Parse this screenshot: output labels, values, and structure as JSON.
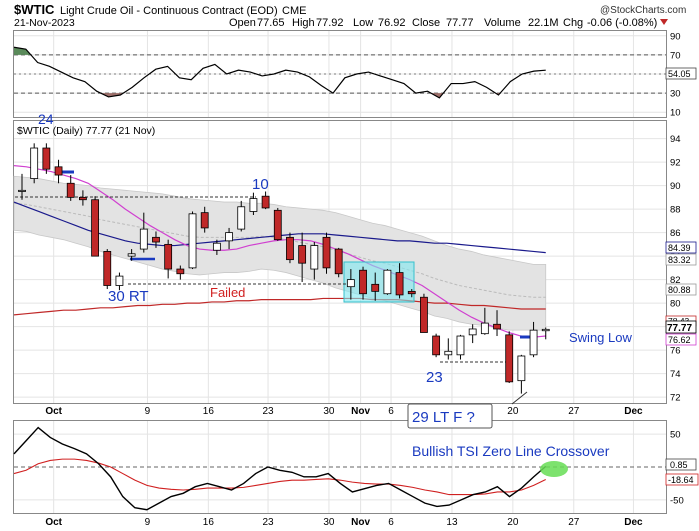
{
  "header": {
    "symbol": "$WTIC",
    "name": "Light Crude Oil - Continuous Contract (EOD)",
    "exchange": "CME",
    "date": "21-Nov-2023",
    "open_label": "Open",
    "open": "77.65",
    "high_label": "High",
    "high": "77.92",
    "low_label": "Low",
    "low": "76.92",
    "close_label": "Close",
    "close": "77.77",
    "volume_label": "Volume",
    "volume": "22.1M",
    "chg_label": "Chg",
    "chg": "-0.06 (-0.08%)",
    "watermark": "@StockCharts.com"
  },
  "chart_data": [
    {
      "type": "line",
      "panel": "rsi",
      "ylim": [
        5,
        95
      ],
      "yticks": [
        10,
        30,
        50,
        70,
        90
      ],
      "reference_lines": [
        30,
        70
      ],
      "last_value": "54.05",
      "series": [
        {
          "values": [
            78,
            76,
            62,
            58,
            52,
            46,
            42,
            32,
            26,
            28,
            36,
            46,
            55,
            58,
            46,
            44,
            56,
            60,
            50,
            54,
            52,
            48,
            50,
            54,
            52,
            47,
            38,
            30,
            46,
            50,
            52,
            48,
            44,
            40,
            30,
            32,
            25,
            40,
            40,
            42,
            36,
            28,
            42,
            50,
            53,
            54
          ]
        }
      ]
    },
    {
      "type": "candlestick",
      "panel": "price",
      "label": "$WTIC (Daily) 77.77 (21 Nov)",
      "ylim": [
        71.5,
        95.5
      ],
      "yticks": [
        72,
        74,
        76,
        78,
        80,
        82,
        84,
        86,
        88,
        90,
        92,
        94
      ],
      "price_labels": [
        "84.39",
        "83.32",
        "80.88",
        "78.43",
        "77.77",
        "76.62"
      ],
      "candles": [
        {
          "o": 89.5,
          "h": 91.0,
          "l": 88.8,
          "c": 89.6
        },
        {
          "o": 90.6,
          "h": 93.6,
          "l": 90.2,
          "c": 93.2
        },
        {
          "o": 93.2,
          "h": 93.6,
          "l": 91.0,
          "c": 91.4
        },
        {
          "o": 91.6,
          "h": 92.2,
          "l": 90.2,
          "c": 90.9
        },
        {
          "o": 90.2,
          "h": 90.9,
          "l": 88.7,
          "c": 89.0
        },
        {
          "o": 89.0,
          "h": 89.6,
          "l": 88.3,
          "c": 88.8
        },
        {
          "o": 88.8,
          "h": 89.1,
          "l": 84.0,
          "c": 84.0
        },
        {
          "o": 84.4,
          "h": 84.6,
          "l": 81.2,
          "c": 81.5
        },
        {
          "o": 81.5,
          "h": 82.6,
          "l": 81.1,
          "c": 82.3
        },
        {
          "o": 84.0,
          "h": 84.6,
          "l": 83.6,
          "c": 84.2
        },
        {
          "o": 84.6,
          "h": 87.7,
          "l": 84.3,
          "c": 86.3
        },
        {
          "o": 85.6,
          "h": 86.1,
          "l": 84.7,
          "c": 85.2
        },
        {
          "o": 85.0,
          "h": 85.4,
          "l": 82.1,
          "c": 82.9
        },
        {
          "o": 82.9,
          "h": 83.2,
          "l": 82.0,
          "c": 82.5
        },
        {
          "o": 83.0,
          "h": 87.8,
          "l": 82.9,
          "c": 87.6
        },
        {
          "o": 87.7,
          "h": 88.2,
          "l": 86.0,
          "c": 86.4
        },
        {
          "o": 84.5,
          "h": 85.4,
          "l": 84.1,
          "c": 85.1
        },
        {
          "o": 85.3,
          "h": 86.4,
          "l": 84.6,
          "c": 86.0
        },
        {
          "o": 86.3,
          "h": 88.7,
          "l": 86.1,
          "c": 88.2
        },
        {
          "o": 87.8,
          "h": 89.4,
          "l": 87.5,
          "c": 88.9
        },
        {
          "o": 89.1,
          "h": 89.5,
          "l": 88.0,
          "c": 88.1
        },
        {
          "o": 87.9,
          "h": 88.1,
          "l": 85.3,
          "c": 85.4
        },
        {
          "o": 85.6,
          "h": 86.0,
          "l": 83.4,
          "c": 83.7
        },
        {
          "o": 84.9,
          "h": 86.0,
          "l": 81.8,
          "c": 83.4
        },
        {
          "o": 82.9,
          "h": 85.2,
          "l": 82.0,
          "c": 84.9
        },
        {
          "o": 85.6,
          "h": 86.0,
          "l": 82.5,
          "c": 83.0
        },
        {
          "o": 84.6,
          "h": 84.7,
          "l": 82.2,
          "c": 82.5
        },
        {
          "o": 81.4,
          "h": 82.9,
          "l": 80.3,
          "c": 82.0
        },
        {
          "o": 82.8,
          "h": 83.1,
          "l": 80.3,
          "c": 80.8
        },
        {
          "o": 81.6,
          "h": 82.6,
          "l": 80.2,
          "c": 81.0
        },
        {
          "o": 80.8,
          "h": 82.9,
          "l": 80.7,
          "c": 82.8
        },
        {
          "o": 82.6,
          "h": 83.4,
          "l": 80.4,
          "c": 80.7
        },
        {
          "o": 81.0,
          "h": 81.2,
          "l": 80.5,
          "c": 80.8
        },
        {
          "o": 80.5,
          "h": 80.8,
          "l": 77.5,
          "c": 77.5
        },
        {
          "o": 77.2,
          "h": 77.4,
          "l": 75.4,
          "c": 75.6
        },
        {
          "o": 75.6,
          "h": 77.0,
          "l": 75.2,
          "c": 75.9
        },
        {
          "o": 75.6,
          "h": 77.3,
          "l": 75.2,
          "c": 77.2
        },
        {
          "o": 77.3,
          "h": 78.2,
          "l": 76.6,
          "c": 77.8
        },
        {
          "o": 77.4,
          "h": 79.6,
          "l": 77.3,
          "c": 78.3
        },
        {
          "o": 78.2,
          "h": 79.4,
          "l": 77.2,
          "c": 77.8
        },
        {
          "o": 77.3,
          "h": 77.6,
          "l": 73.2,
          "c": 73.3
        },
        {
          "o": 73.4,
          "h": 75.6,
          "l": 72.3,
          "c": 75.5
        },
        {
          "o": 75.6,
          "h": 78.4,
          "l": 75.4,
          "c": 77.7
        },
        {
          "o": 77.65,
          "h": 77.92,
          "l": 76.92,
          "c": 77.77
        }
      ],
      "ma_fast": [
        91.7,
        91.6,
        91.4,
        91.2,
        90.9,
        90.6,
        90.2,
        89.5,
        88.8,
        88.0,
        87.3,
        86.6,
        86.0,
        85.4,
        84.9,
        84.6,
        84.5,
        84.5,
        84.6,
        84.9,
        85.1,
        85.3,
        85.4,
        85.4,
        85.3,
        85.0,
        84.6,
        84.2,
        83.7,
        83.2,
        82.8,
        82.4,
        82.0,
        81.5,
        80.8,
        80.1,
        79.4,
        78.8,
        78.3,
        77.9,
        77.5,
        77.2,
        77.1,
        77.2
      ],
      "ma_mid": [
        88.6,
        88.2,
        87.8,
        87.4,
        87.0,
        86.6,
        86.2,
        85.9,
        85.6,
        85.3,
        85.1,
        85.0,
        84.9,
        84.9,
        85.0,
        85.1,
        85.2,
        85.3,
        85.4,
        85.5,
        85.6,
        85.7,
        85.8,
        85.9,
        85.9,
        85.9,
        85.8,
        85.7,
        85.6,
        85.5,
        85.4,
        85.3,
        85.3,
        85.2,
        85.1,
        85.1,
        85.0,
        84.9,
        84.8,
        84.7,
        84.6,
        84.5,
        84.4,
        84.3
      ],
      "ma_slow": [
        79.0,
        79.1,
        79.2,
        79.3,
        79.4,
        79.4,
        79.5,
        79.6,
        79.6,
        79.7,
        79.8,
        79.8,
        79.9,
        79.9,
        80.0,
        80.0,
        80.1,
        80.1,
        80.2,
        80.2,
        80.3,
        80.3,
        80.3,
        80.3,
        80.3,
        80.4,
        80.4,
        80.4,
        80.4,
        80.3,
        80.3,
        80.3,
        80.2,
        80.1,
        80.0,
        80.0,
        79.9,
        79.8,
        79.8,
        79.7,
        79.6,
        79.5,
        79.5,
        79.5
      ],
      "band_mid": [
        88.5,
        88.4,
        88.2,
        88.0,
        87.8,
        87.6,
        87.4,
        87.1,
        86.9,
        86.7,
        86.5,
        86.3,
        86.1,
        85.9,
        85.7,
        85.6,
        85.6,
        85.6,
        85.6,
        85.6,
        85.7,
        85.6,
        85.4,
        85.2,
        85.0,
        84.8,
        84.5,
        84.2,
        83.9,
        83.6,
        83.4,
        83.1,
        82.8,
        82.5,
        82.1,
        81.8,
        81.5,
        81.3,
        81.1,
        80.9,
        80.7,
        80.6,
        80.5,
        80.5
      ],
      "band_width": [
        2.3,
        2.3,
        2.4,
        2.4,
        2.4,
        2.5,
        2.6,
        2.7,
        2.8,
        2.9,
        3.0,
        3.1,
        3.2,
        3.2,
        3.2,
        3.2,
        3.1,
        3.0,
        3.0,
        2.9,
        2.8,
        2.8,
        2.8,
        2.9,
        3.0,
        3.1,
        3.2,
        3.2,
        3.2,
        3.2,
        3.2,
        3.2,
        3.2,
        3.2,
        3.2,
        3.1,
        3.1,
        3.1,
        3.0,
        3.0,
        3.0,
        2.9,
        2.8,
        2.8
      ]
    },
    {
      "type": "line",
      "panel": "tsi",
      "ylim": [
        -70,
        70
      ],
      "yticks": [
        50,
        0,
        -50
      ],
      "last_values": [
        "0.85",
        "-18.64"
      ],
      "series": [
        {
          "values": [
            20,
            40,
            60,
            45,
            35,
            28,
            20,
            5,
            -15,
            -45,
            -62,
            -65,
            -55,
            -45,
            -40,
            -30,
            -25,
            -30,
            -35,
            -25,
            -10,
            0,
            -5,
            -8,
            -15,
            -15,
            -10,
            -25,
            -38,
            -33,
            -28,
            -25,
            -35,
            -45,
            -55,
            -60,
            -58,
            -50,
            -42,
            -38,
            -30,
            -45,
            -32,
            -15,
            1
          ]
        },
        {
          "values": [
            -10,
            -5,
            5,
            10,
            12,
            12,
            10,
            6,
            0,
            -10,
            -20,
            -28,
            -32,
            -34,
            -35,
            -34,
            -32,
            -32,
            -32,
            -31,
            -28,
            -25,
            -22,
            -20,
            -20,
            -19,
            -18,
            -20,
            -23,
            -25,
            -26,
            -26,
            -28,
            -31,
            -35,
            -38,
            -42,
            -42,
            -42,
            -41,
            -38,
            -38,
            -35,
            -28,
            -19
          ]
        }
      ]
    }
  ],
  "x_axis": {
    "tick_labels": [
      "Oct",
      "9",
      "16",
      "23",
      "30",
      "Nov",
      "6",
      "13",
      "20",
      "27",
      "Dec"
    ],
    "bold_labels": [
      "Oct",
      "Nov",
      "Dec"
    ]
  },
  "annotations": {
    "swing_high": "24",
    "double_bottom": "30 RT",
    "failed": "Failed",
    "hi_pivot": "10",
    "low_23": "23",
    "failure": "29 LT F ?",
    "swing_low": "Swing Low",
    "tsi_note": "Bullish TSI Zero Line Crossover"
  },
  "colors": {
    "up_candle": "#ffffff",
    "down_candle": "#c02828",
    "ma_fast": "#d040d0",
    "ma_mid": "#1a1a8c",
    "ma_slow": "#c02828",
    "band_fill": "#e3e3e3",
    "rsi_line": "#000000",
    "rsi_overbought_fill": "#5a8a5a",
    "rsi_oversold_fill": "#9e6f6a",
    "tsi_line": "#000000",
    "tsi_signal": "#d02020",
    "annotation_blue": "#1a3ac0",
    "annotation_red": "#d02020",
    "highlight_box": "#7fe8f0",
    "highlight_oval": "#66dd55"
  }
}
